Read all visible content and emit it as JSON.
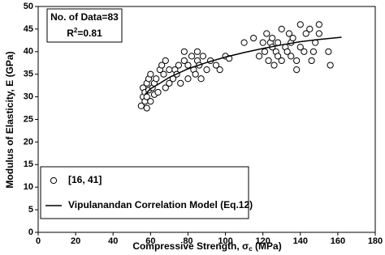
{
  "chart_data": {
    "type": "scatter",
    "annotation": {
      "count": "No. of Data=83",
      "r_base": "R",
      "r_sup": "2",
      "r_tail": "=0.81"
    },
    "xlabel": {
      "text": "Compressive Strength, σ",
      "sub": "c",
      "tail": " (MPa)"
    },
    "ylabel": "Modulus of Elasticity, E (GPa)",
    "xlim": [
      0,
      180
    ],
    "xticks": [
      0,
      20,
      40,
      60,
      80,
      100,
      120,
      140,
      160,
      180
    ],
    "ylim": [
      0,
      50
    ],
    "yticks": [
      0,
      5,
      10,
      15,
      20,
      25,
      30,
      35,
      40,
      45,
      50
    ],
    "legend": "bottom-left",
    "series": [
      {
        "name": "[16, 41]",
        "type": "scatter",
        "color": "#000000",
        "x": [
          55,
          56,
          56,
          57,
          57,
          58,
          58,
          58,
          59,
          59,
          60,
          60,
          61,
          62,
          62,
          63,
          64,
          65,
          66,
          67,
          68,
          68,
          70,
          70,
          72,
          73,
          74,
          75,
          76,
          78,
          78,
          80,
          80,
          82,
          83,
          84,
          85,
          85,
          86,
          87,
          88,
          90,
          92,
          95,
          97,
          100,
          102,
          110,
          115,
          118,
          120,
          121,
          122,
          123,
          124,
          125,
          125,
          126,
          127,
          128,
          128,
          130,
          130,
          132,
          133,
          134,
          135,
          135,
          136,
          138,
          138,
          140,
          140,
          142,
          143,
          145,
          146,
          147,
          148,
          150,
          150,
          155,
          156
        ],
        "y": [
          28,
          30,
          32,
          29,
          31,
          33,
          30,
          27.5,
          31.5,
          34,
          29,
          35,
          32,
          33,
          30.5,
          34,
          31,
          36,
          37,
          35,
          32,
          38,
          33,
          36,
          34,
          36,
          35,
          37,
          33,
          40,
          38,
          34,
          37,
          39,
          36,
          35,
          40,
          38,
          37,
          34,
          39,
          36,
          38,
          37,
          36,
          39,
          38.5,
          42,
          43,
          39,
          42,
          40,
          44,
          38,
          42,
          41,
          43,
          37,
          40,
          39,
          42,
          45,
          38,
          41,
          40,
          44,
          42,
          39,
          43,
          38,
          36,
          46,
          41,
          40,
          44,
          45,
          38,
          40,
          42,
          44,
          46,
          40,
          37
        ]
      },
      {
        "name": "Vipulanandan Correlation Model (Eq.12)",
        "type": "line",
        "color": "#000000",
        "x": [
          57,
          60,
          65,
          70,
          80,
          90,
          100,
          110,
          120,
          130,
          140,
          150,
          162
        ],
        "y": [
          30.5,
          31.8,
          33,
          34.3,
          36.2,
          37.6,
          38.8,
          39.8,
          40.7,
          41.5,
          42.2,
          42.7,
          43.2
        ]
      }
    ]
  }
}
